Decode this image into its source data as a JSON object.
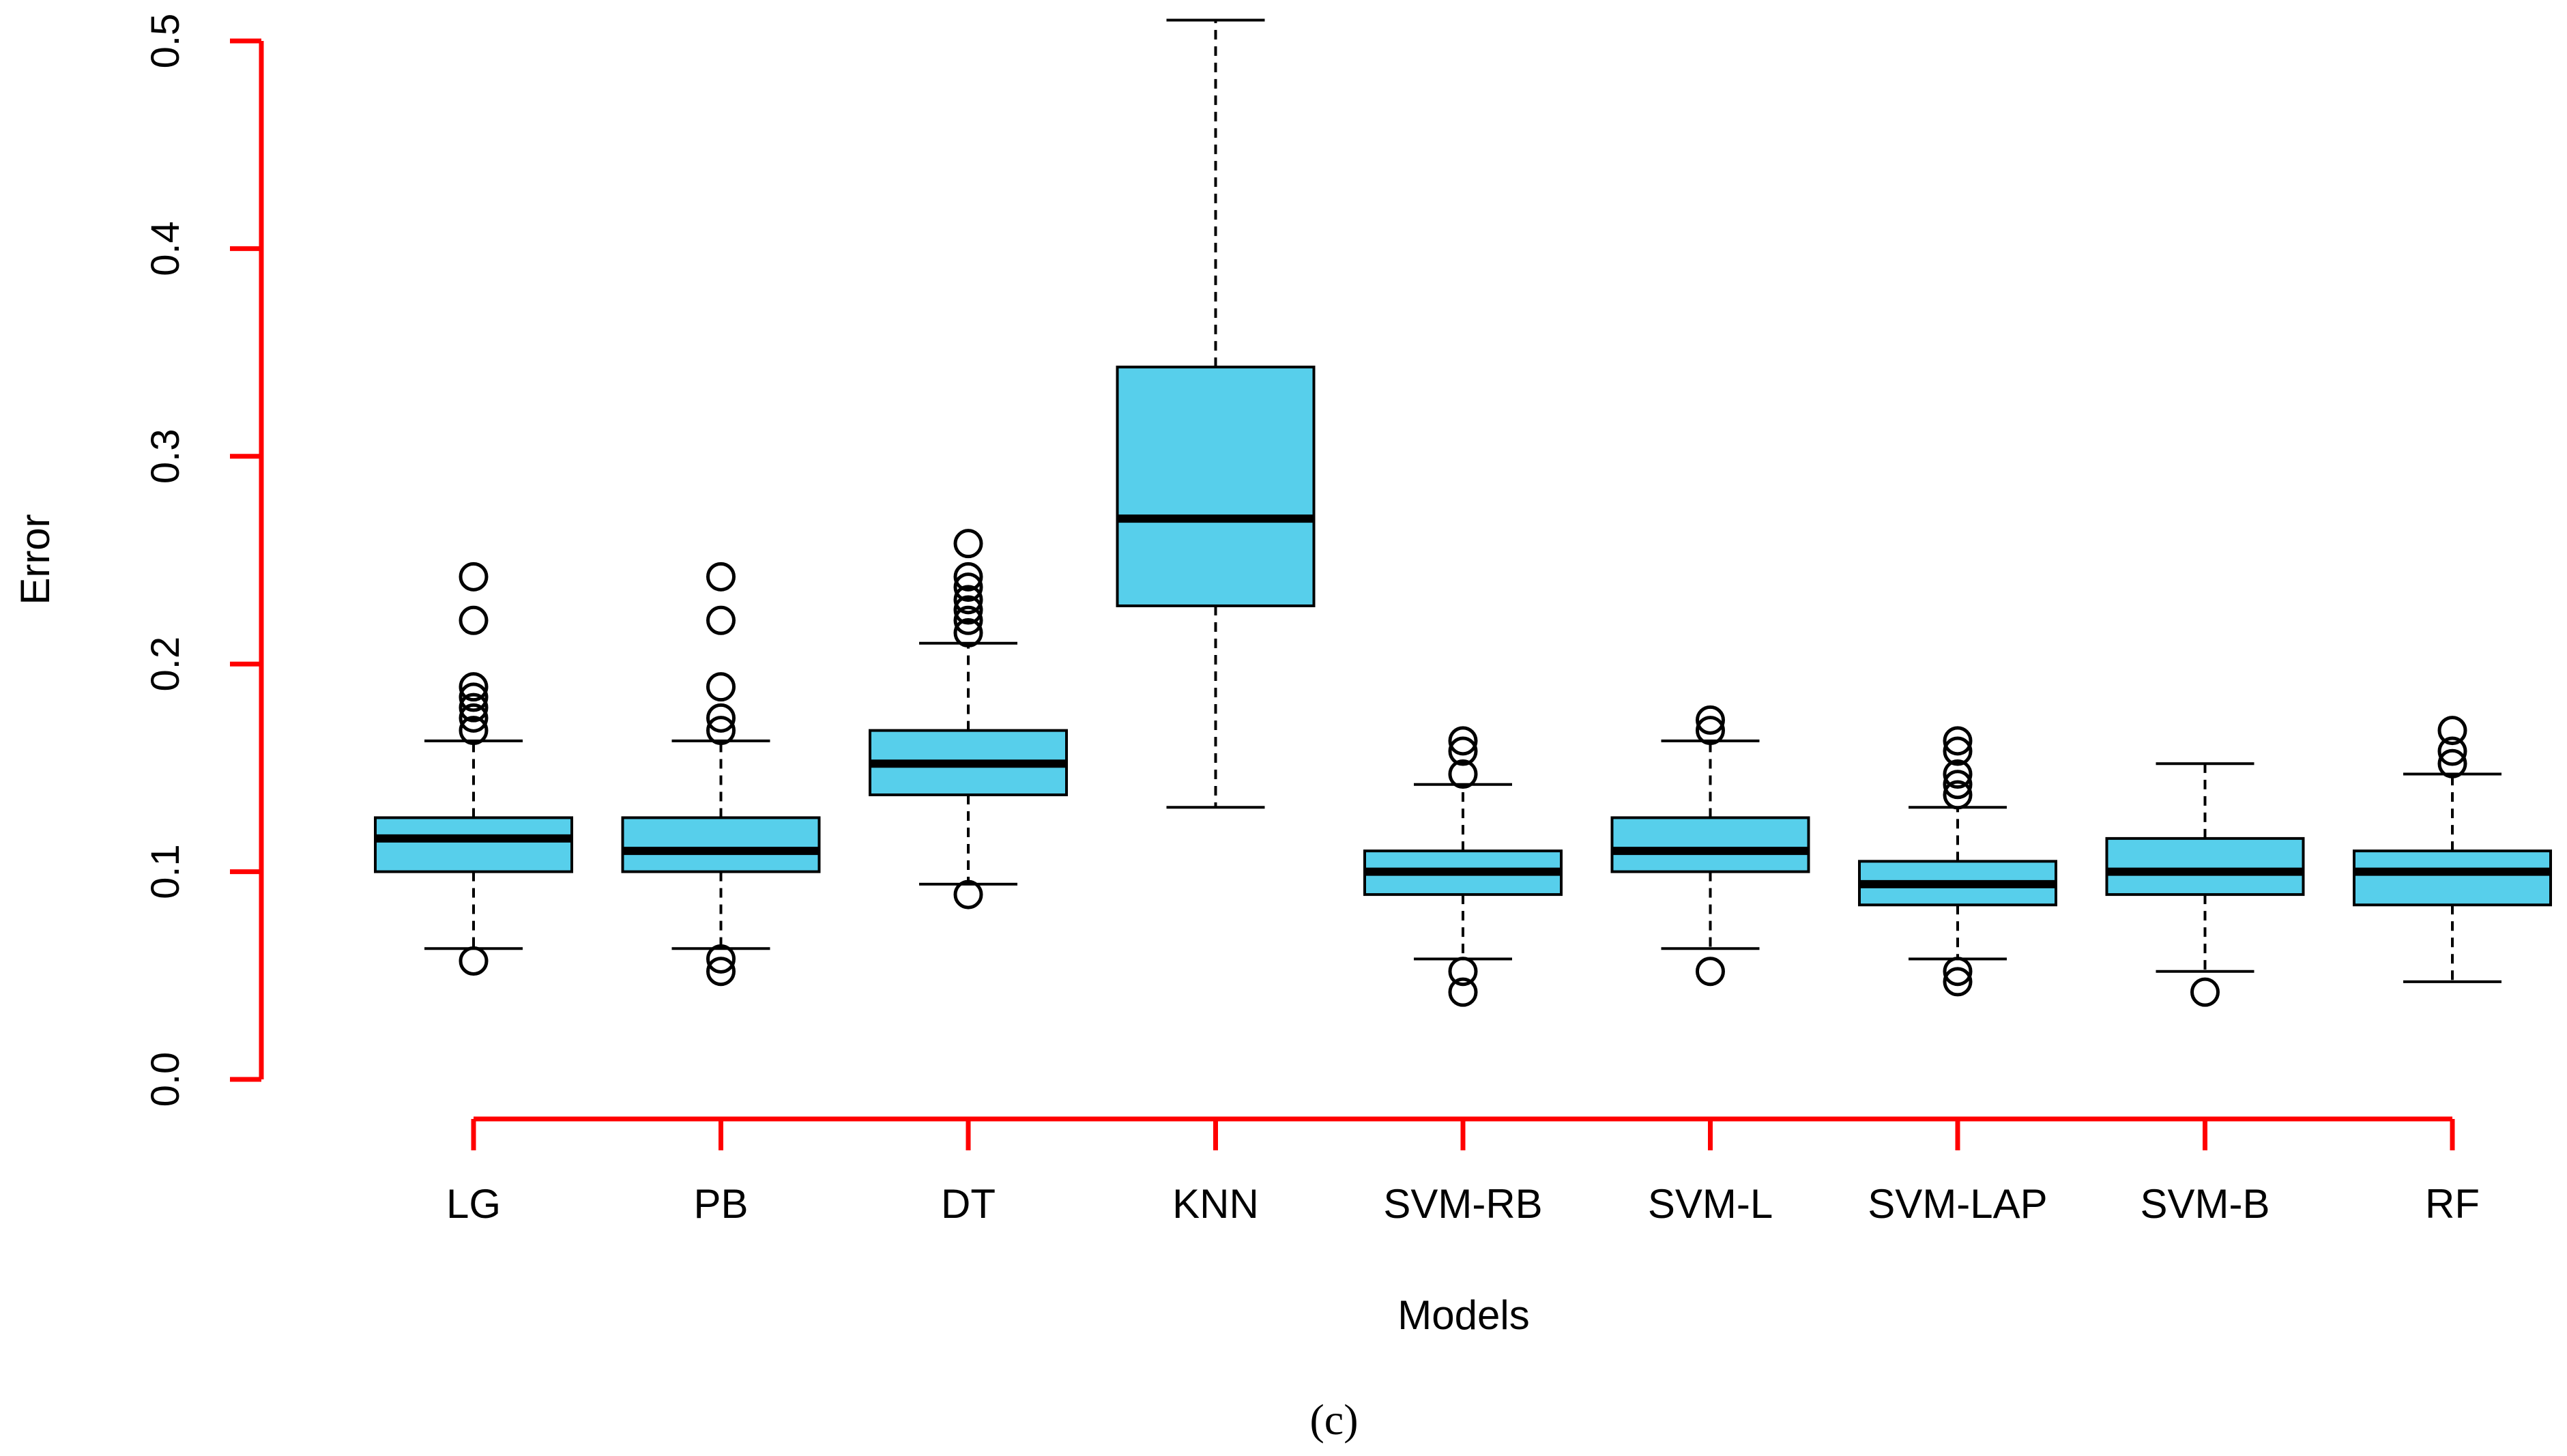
{
  "chart_data": {
    "type": "boxplot",
    "xlabel": "Models",
    "ylabel": "Error",
    "caption": "(c)",
    "ylim": [
      0.0,
      0.5
    ],
    "yticks": [
      "0.0",
      "0.1",
      "0.2",
      "0.3",
      "0.4",
      "0.5"
    ],
    "ytick_values": [
      0.0,
      0.1,
      0.2,
      0.3,
      0.4,
      0.5
    ],
    "colors": {
      "box_fill": "#57cfeb",
      "axis": "#ff0000",
      "line": "#000000"
    },
    "categories": [
      "LG",
      "PB",
      "DT",
      "KNN",
      "SVM-RB",
      "SVM-L",
      "SVM-LAP",
      "SVM-B",
      "RF"
    ],
    "boxes": [
      {
        "name": "LG",
        "whisker_low": 0.063,
        "q1": 0.1,
        "median": 0.116,
        "q3": 0.126,
        "whisker_high": 0.163,
        "outliers": [
          0.057,
          0.168,
          0.174,
          0.179,
          0.184,
          0.189,
          0.221,
          0.242
        ]
      },
      {
        "name": "PB",
        "whisker_low": 0.063,
        "q1": 0.1,
        "median": 0.11,
        "q3": 0.126,
        "whisker_high": 0.163,
        "outliers": [
          0.052,
          0.058,
          0.168,
          0.174,
          0.189,
          0.221,
          0.242
        ]
      },
      {
        "name": "DT",
        "whisker_low": 0.094,
        "q1": 0.137,
        "median": 0.152,
        "q3": 0.168,
        "whisker_high": 0.21,
        "outliers": [
          0.089,
          0.215,
          0.221,
          0.226,
          0.231,
          0.237,
          0.242,
          0.258
        ]
      },
      {
        "name": "KNN",
        "whisker_low": 0.131,
        "q1": 0.228,
        "median": 0.27,
        "q3": 0.343,
        "whisker_high": 0.51,
        "outliers": []
      },
      {
        "name": "SVM-RB",
        "whisker_low": 0.058,
        "q1": 0.089,
        "median": 0.1,
        "q3": 0.11,
        "whisker_high": 0.142,
        "outliers": [
          0.042,
          0.052,
          0.147,
          0.158,
          0.163
        ]
      },
      {
        "name": "SVM-L",
        "whisker_low": 0.063,
        "q1": 0.1,
        "median": 0.11,
        "q3": 0.126,
        "whisker_high": 0.163,
        "outliers": [
          0.052,
          0.168,
          0.173
        ]
      },
      {
        "name": "SVM-LAP",
        "whisker_low": 0.058,
        "q1": 0.084,
        "median": 0.094,
        "q3": 0.105,
        "whisker_high": 0.131,
        "outliers": [
          0.047,
          0.052,
          0.137,
          0.142,
          0.147,
          0.158,
          0.163
        ]
      },
      {
        "name": "SVM-B",
        "whisker_low": 0.052,
        "q1": 0.089,
        "median": 0.1,
        "q3": 0.116,
        "whisker_high": 0.152,
        "outliers": [
          0.042
        ]
      },
      {
        "name": "RF",
        "whisker_low": 0.047,
        "q1": 0.084,
        "median": 0.1,
        "q3": 0.11,
        "whisker_high": 0.147,
        "outliers": [
          0.152,
          0.158,
          0.168
        ]
      }
    ]
  }
}
